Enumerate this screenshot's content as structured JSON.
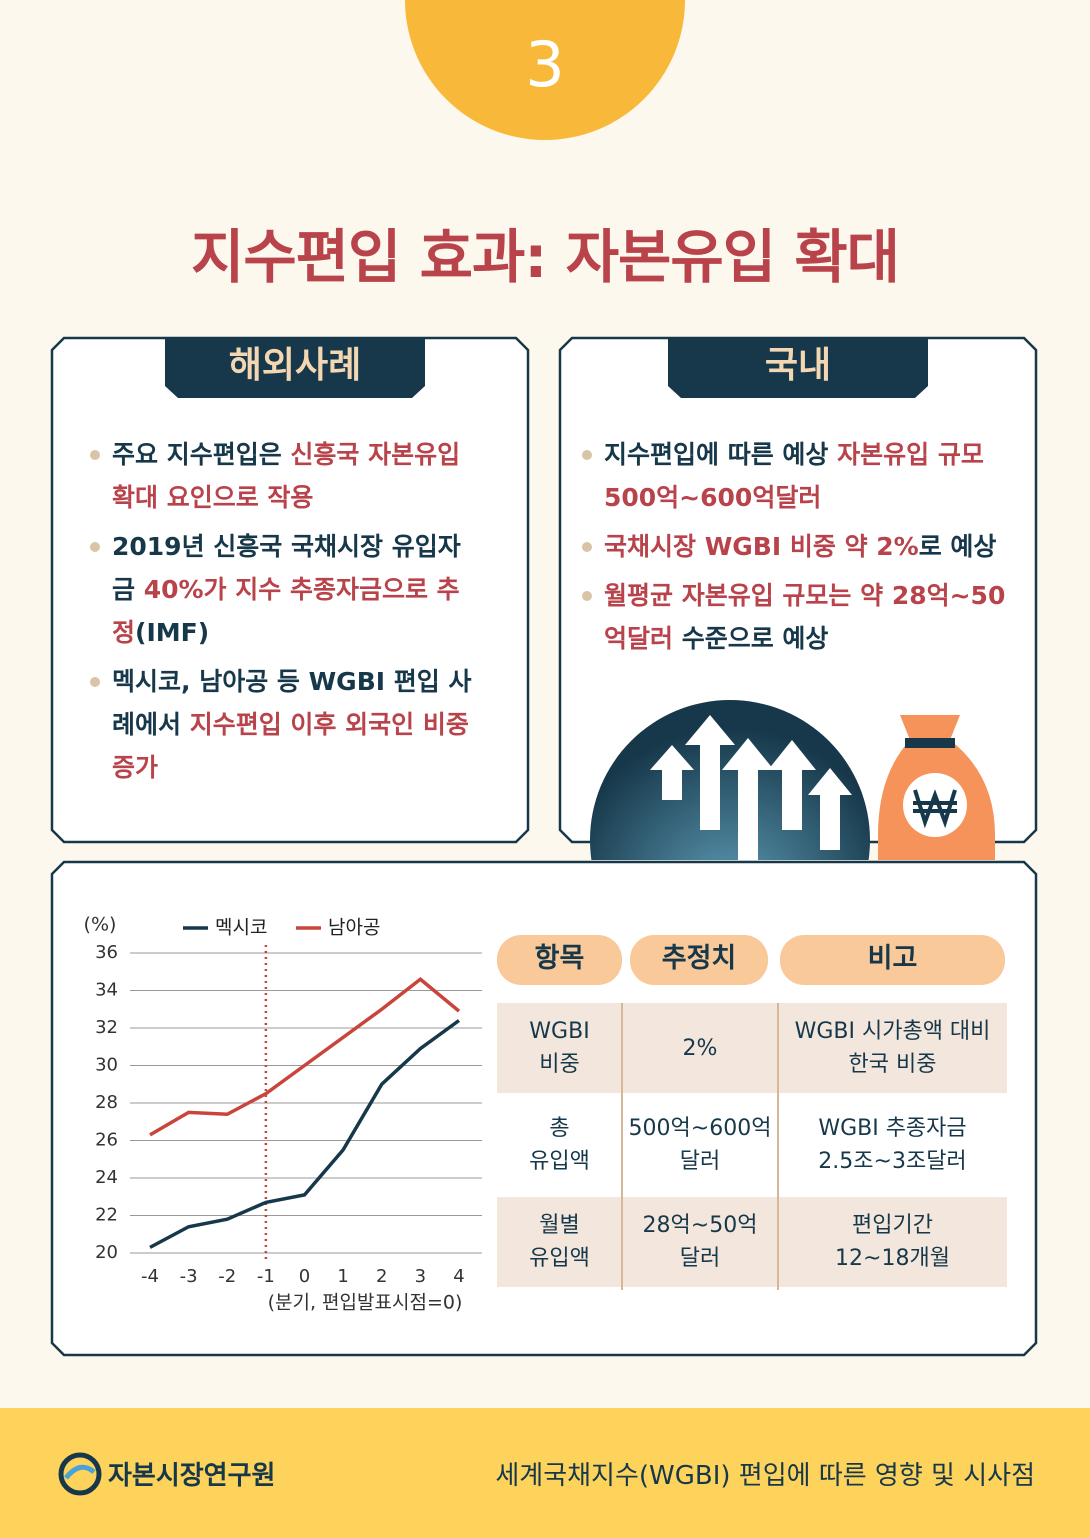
{
  "badge": "3",
  "title": "지수편입 효과: 자본유입 확대",
  "overseas": {
    "heading": "해외사례",
    "bullets": [
      [
        {
          "text": "주요 지수편입은 "
        },
        {
          "text": "신흥국 자본유입 확대 요인으로 작용",
          "color": "#b8434a"
        }
      ],
      [
        {
          "text": "2019년 신흥국 국채시장 유입자금 "
        },
        {
          "text": "40%가 지수 추종자금으로 추정",
          "color": "#b8434a"
        },
        {
          "text": "(IMF)"
        }
      ],
      [
        {
          "text": "멕시코, 남아공 등 WGBI 편입 사례에서 "
        },
        {
          "text": "지수편입 이후 외국인 비중 증가",
          "color": "#b8434a"
        }
      ]
    ]
  },
  "domestic": {
    "heading": "국내",
    "bullets": [
      [
        {
          "text": "지수편입에 따른 예상 "
        },
        {
          "text": "자본유입 규모 500억~600억달러",
          "color": "#b8434a"
        }
      ],
      [
        {
          "text": "국채시장 WGBI 비중 약 2%",
          "color": "#b8434a"
        },
        {
          "text": "로 예상"
        }
      ],
      [
        {
          "text": "월평균 자본유입 규모는 약 28억~50억달러",
          "color": "#b8434a"
        },
        {
          "text": " 수준으로 예상"
        }
      ]
    ]
  },
  "chart_data": {
    "type": "line",
    "y_unit_label": "(%)",
    "x_label": "(분기, 편입발표시점=0)",
    "x": [
      -4,
      -3,
      -2,
      -1,
      0,
      1,
      2,
      3,
      4
    ],
    "series": [
      {
        "name": "멕시코",
        "color": "#17384a",
        "values": [
          20.3,
          21.4,
          21.8,
          22.7,
          23.1,
          25.5,
          29.0,
          30.9,
          32.4
        ]
      },
      {
        "name": "남아공",
        "color": "#c9453b",
        "values": [
          26.3,
          27.5,
          27.4,
          28.5,
          30.0,
          31.5,
          33.0,
          34.6,
          32.9
        ]
      }
    ],
    "xlim": [
      -4,
      4
    ],
    "xticks": [
      -4,
      -3,
      -2,
      -1,
      0,
      1,
      2,
      3,
      4
    ],
    "ylim": [
      20,
      36
    ],
    "yticks": [
      20,
      22,
      24,
      26,
      28,
      30,
      32,
      34,
      36
    ],
    "grid": true,
    "marker_x": -1,
    "marker_color": "#c9453b"
  },
  "table": {
    "headers": [
      "항목",
      "추정치",
      "비고"
    ],
    "rows": [
      [
        "WGBI\n비중",
        "2%",
        "WGBI 시가총액 대비\n한국 비중"
      ],
      [
        "총\n유입액",
        "500억~600억\n달러",
        "WGBI 추종자금\n2.5조~3조달러"
      ],
      [
        "월별\n유입액",
        "28억~50억\n달러",
        "편입기간\n12~18개월"
      ]
    ]
  },
  "footer": {
    "org": "자본시장연구원",
    "subtitle": "세계국채지수(WGBI) 편입에 따른 영향 및 시사점"
  }
}
